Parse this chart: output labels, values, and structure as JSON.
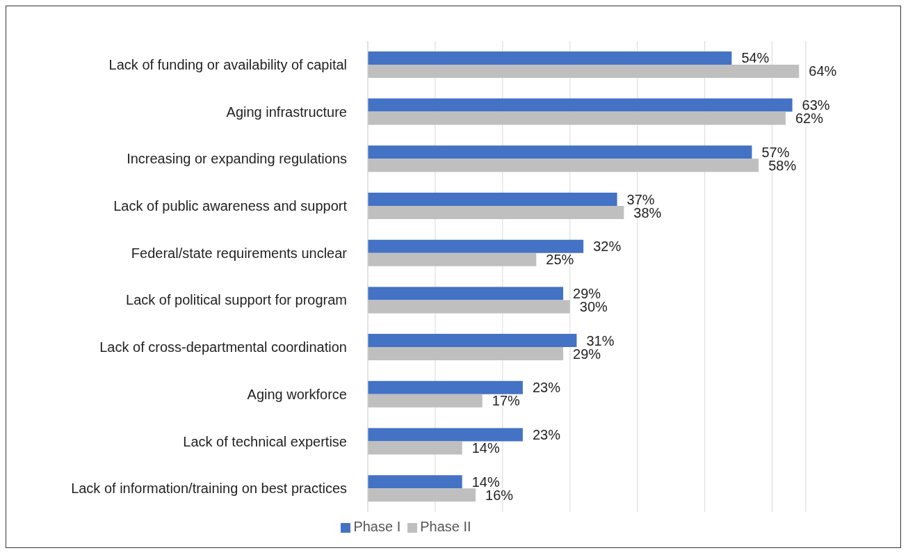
{
  "chart_data": {
    "type": "bar",
    "orientation": "horizontal",
    "categories": [
      "Lack of funding or availability of capital",
      "Aging infrastructure",
      "Increasing or expanding regulations",
      "Lack of public awareness and support",
      "Federal/state requirements unclear",
      "Lack of political support for program",
      "Lack of cross-departmental coordination",
      "Aging workforce",
      "Lack of technical expertise",
      "Lack of information/training on best practices"
    ],
    "series": [
      {
        "name": "Phase I",
        "color": "#4472c4",
        "values": [
          54,
          63,
          57,
          37,
          32,
          29,
          31,
          23,
          23,
          14
        ],
        "value_labels": [
          "54%",
          "63%",
          "57%",
          "37%",
          "32%",
          "29%",
          "31%",
          "23%",
          "23%",
          "14%"
        ]
      },
      {
        "name": "Phase II",
        "color": "#bfbfbf",
        "values": [
          64,
          62,
          58,
          38,
          25,
          30,
          29,
          17,
          14,
          16
        ],
        "value_labels": [
          "64%",
          "62%",
          "58%",
          "38%",
          "25%",
          "30%",
          "29%",
          "17%",
          "14%",
          "16%"
        ]
      }
    ],
    "xlim": [
      0,
      65
    ],
    "xticks": [
      {
        "value": 0,
        "label": null
      },
      {
        "value": 10,
        "label": null
      },
      {
        "value": 20,
        "label": null
      },
      {
        "value": 30,
        "label": null
      },
      {
        "value": 40,
        "label": null
      },
      {
        "value": 50,
        "label": null
      },
      {
        "value": 60,
        "label": null
      }
    ],
    "tick_labels": "y",
    "grid": "x",
    "legend": "bottom"
  }
}
